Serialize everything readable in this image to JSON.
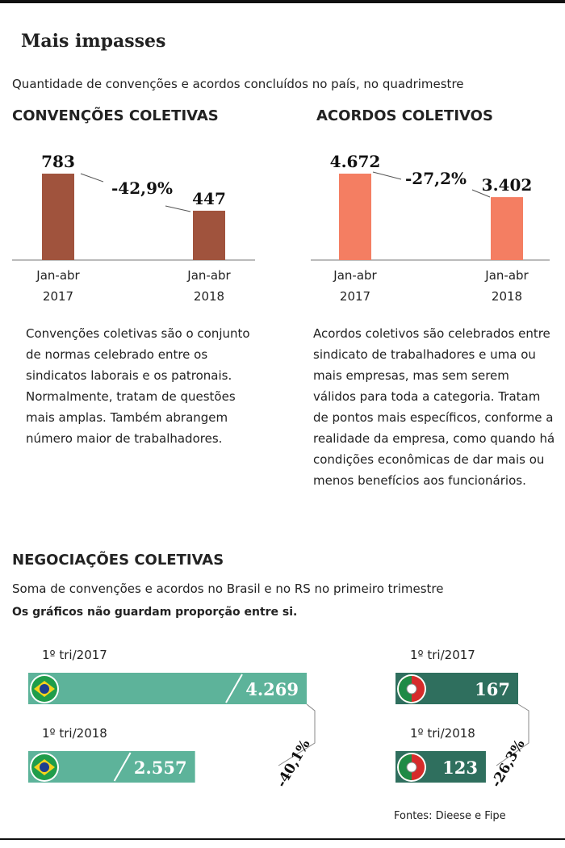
{
  "title": "Mais impasses",
  "subtitle": "Quantidade de convenções e acordos concluídos no país, no quadrimestre",
  "chart_data": [
    {
      "type": "bar",
      "title": "CONVENÇÕES COLETIVAS",
      "categories": [
        "Jan-abr 2017",
        "Jan-abr 2018"
      ],
      "values": [
        783,
        447
      ],
      "color": "#a0533d",
      "annotation": "-42,9%",
      "description": "Convenções coletivas são o conjunto de normas celebrado entre os sindicatos laborais e os patronais. Normalmente, tratam de questões mais amplas. Também abrangem número maior de trabalhadores."
    },
    {
      "type": "bar",
      "title": "ACORDOS COLETIVOS",
      "categories": [
        "Jan-abr 2017",
        "Jan-abr 2018"
      ],
      "values": [
        4672,
        3402
      ],
      "value_labels": [
        "4.672",
        "3.402"
      ],
      "color": "#f47e62",
      "annotation": "-27,2%",
      "description": "Acordos coletivos são celebrados entre sindicato de trabalhadores e uma ou mais empresas, mas sem serem válidos para toda a categoria. Tratam de pontos mais específicos, conforme a realidade da empresa, como quando há condições econômicas de dar mais ou menos benefícios aos funcionários."
    },
    {
      "type": "hbar",
      "categories": [
        "1º tri/2017",
        "1º tri/2018"
      ],
      "values": [
        4269,
        2557
      ],
      "value_labels": [
        "4.269",
        "2.557"
      ],
      "color": "#5db39a",
      "annotation": "-40,1%"
    },
    {
      "type": "hbar",
      "categories": [
        "1º tri/2017",
        "1º tri/2018"
      ],
      "values": [
        167,
        123
      ],
      "color": "#2f6f5e",
      "annotation": "-26,3%"
    }
  ],
  "section": {
    "title": "NEGOCIAÇÕES COLETIVAS",
    "subtitle": "Soma de convenções e acordos no Brasil e no RS no primeiro trimestre",
    "note": "Os gráficos não guardam proporção entre si."
  },
  "source": "Fontes: Dieese e Fipe"
}
